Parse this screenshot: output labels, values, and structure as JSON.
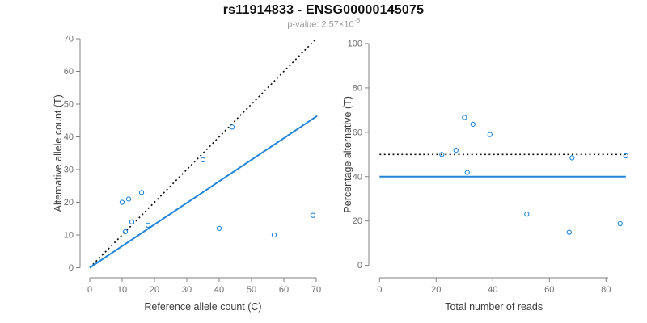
{
  "header": {
    "title": "rs11914833 - ENSG00000145075",
    "subtitle": {
      "label": "p-value: ",
      "base": "2.57×10",
      "exponent": "-6"
    }
  },
  "colors": {
    "accent_blue": "#2184D8",
    "dotted_black": "#141414",
    "axis_gray": "#808080",
    "tick_label_gray": "#6E6E6E",
    "axis_title_gray": "#3D3D3D"
  },
  "chart_data": [
    {
      "name": "allele-counts-scatter",
      "type": "scatter",
      "xlabel": "Reference allele count (C)",
      "ylabel": "Alternative allele count (T)",
      "xlim": [
        0,
        70
      ],
      "ylim": [
        0,
        70
      ],
      "xticks": [
        0,
        10,
        20,
        30,
        40,
        50,
        60,
        70
      ],
      "yticks": [
        0,
        10,
        20,
        30,
        40,
        50,
        60,
        70
      ],
      "grid": false,
      "legend": "none",
      "marker": "open-circle",
      "points": [
        [
          10,
          20
        ],
        [
          11,
          11
        ],
        [
          12,
          21
        ],
        [
          13,
          14
        ],
        [
          16,
          23
        ],
        [
          18,
          13
        ],
        [
          35,
          33
        ],
        [
          40,
          12
        ],
        [
          44,
          43
        ],
        [
          57,
          10
        ],
        [
          69,
          16
        ]
      ],
      "lines": [
        {
          "name": "identity-line",
          "style": "dotted",
          "color_key": "dotted_black",
          "x1": 0,
          "y1": 0,
          "x2": 69.5,
          "y2": 69.5
        },
        {
          "name": "regression-line",
          "style": "solid",
          "color_key": "accent_blue",
          "x1": 0,
          "y1": 0,
          "x2": 70.3,
          "y2": 46.4
        }
      ]
    },
    {
      "name": "percentage-vs-reads-scatter",
      "type": "scatter",
      "xlabel": "Total number of reads",
      "ylabel": "Percentage alternative (T)",
      "xlim": [
        0,
        87
      ],
      "ylim": [
        0,
        100
      ],
      "xticks": [
        0,
        20,
        40,
        60,
        80
      ],
      "yticks": [
        0,
        20,
        40,
        60,
        80,
        100
      ],
      "grid": false,
      "legend": "none",
      "marker": "open-circle",
      "points": [
        [
          22,
          50
        ],
        [
          27,
          51.9
        ],
        [
          30,
          66.7
        ],
        [
          31,
          41.9
        ],
        [
          33,
          63.6
        ],
        [
          39,
          59
        ],
        [
          52,
          23.1
        ],
        [
          67,
          14.9
        ],
        [
          68,
          48.5
        ],
        [
          85,
          18.8
        ],
        [
          87,
          49.4
        ]
      ],
      "lines": [
        {
          "name": "fifty-percent-line",
          "style": "dotted",
          "color_key": "dotted_black",
          "x1": 0,
          "y1": 50,
          "x2": 87,
          "y2": 50
        },
        {
          "name": "mean-percentage-line",
          "style": "solid",
          "color_key": "accent_blue",
          "x1": 0,
          "y1": 40,
          "x2": 87,
          "y2": 40
        }
      ]
    }
  ]
}
